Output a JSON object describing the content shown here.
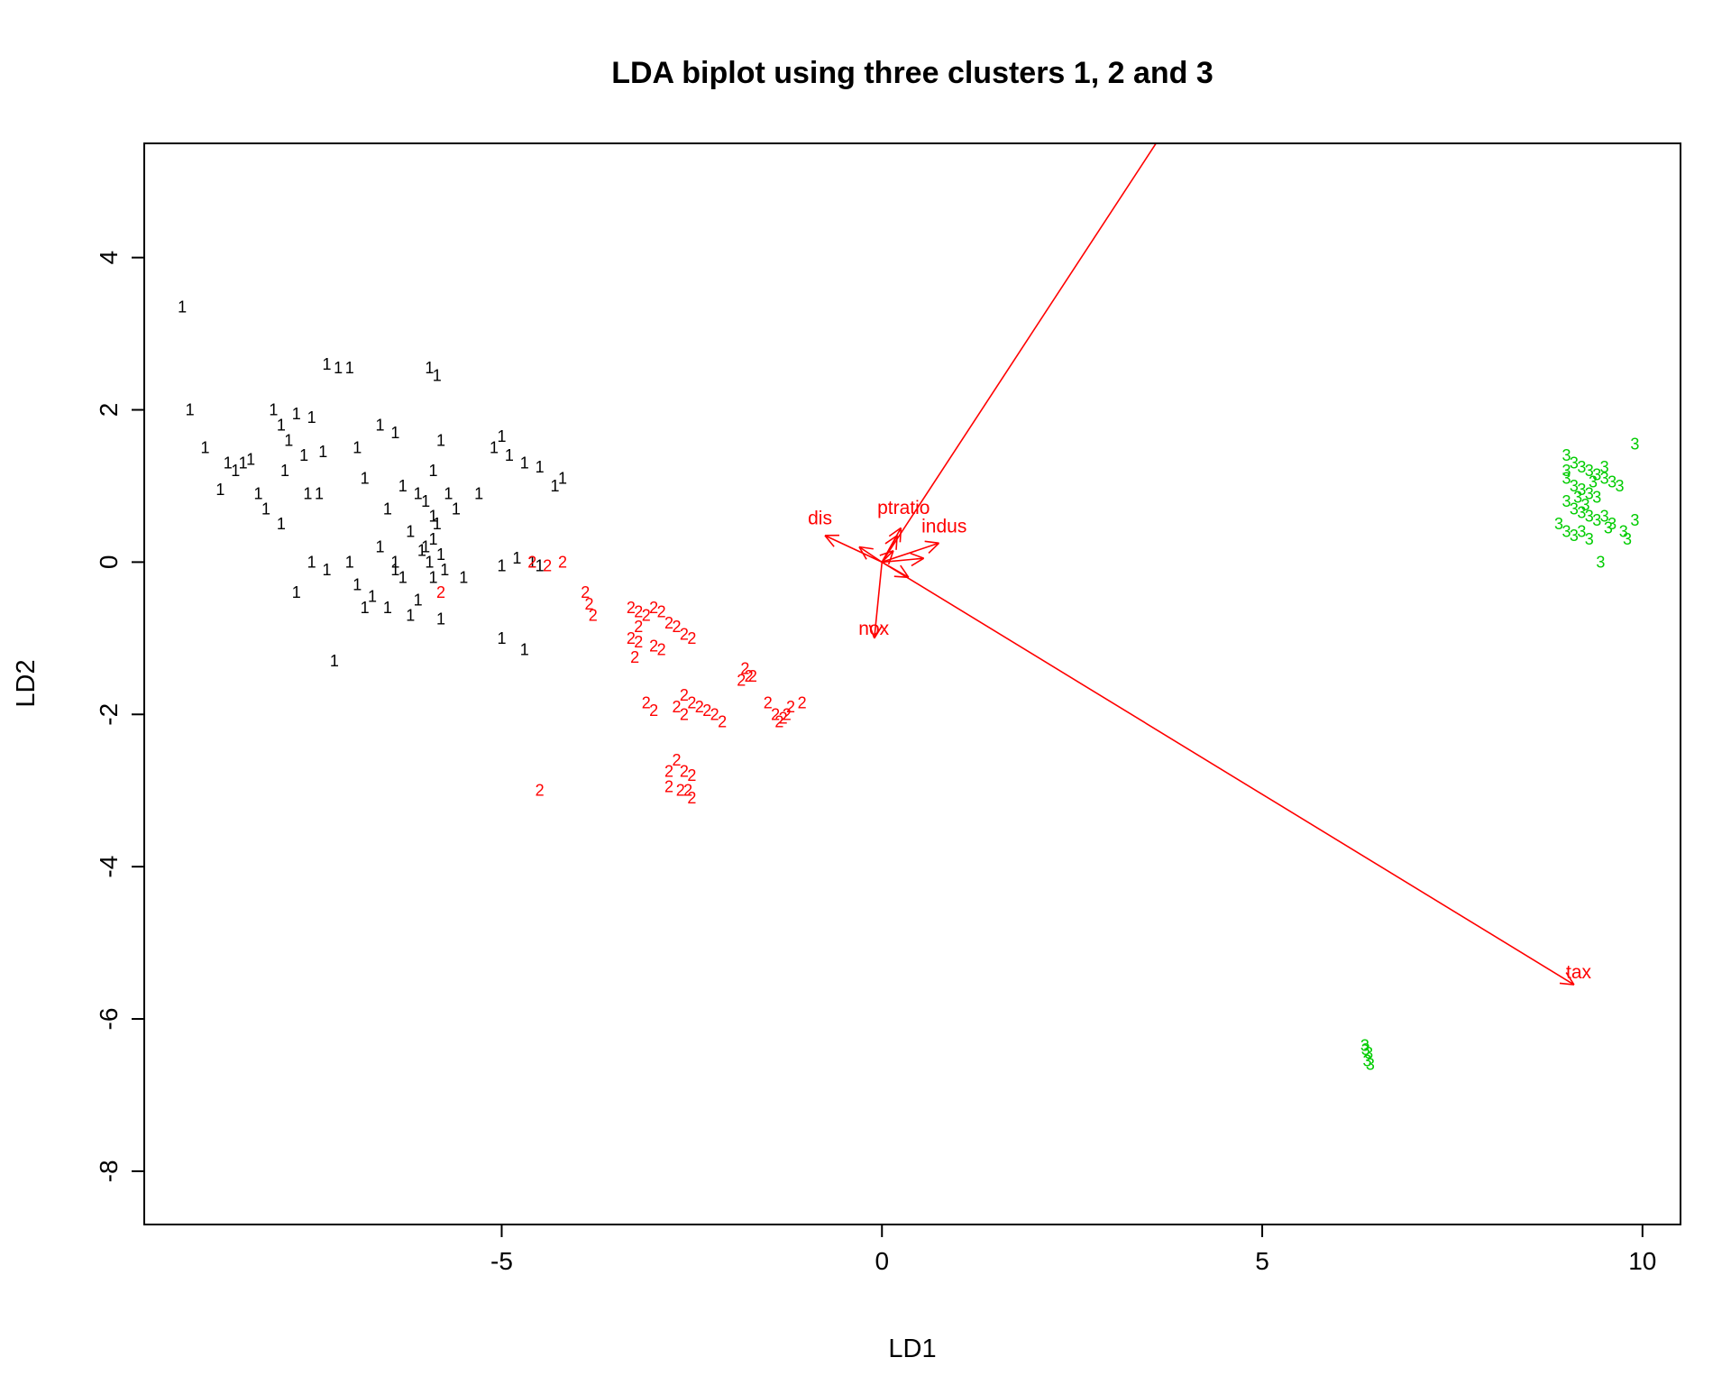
{
  "chart_data": {
    "type": "scatter",
    "title": "LDA biplot using three clusters 1, 2 and 3",
    "xlabel": "LD1",
    "ylabel": "LD2",
    "xlim": [
      -9.7,
      10.5
    ],
    "ylim": [
      -8.7,
      5.5
    ],
    "xticks": [
      -5,
      0,
      5,
      10
    ],
    "xtick_labels": [
      "-5",
      "0",
      "5",
      "10"
    ],
    "yticks": [
      -8,
      -6,
      -4,
      -2,
      0,
      2,
      4
    ],
    "ytick_labels": [
      "-8",
      "-6",
      "-4",
      "-2",
      "0",
      "2",
      "4"
    ],
    "grid": false,
    "legend": "none",
    "series": [
      {
        "name": "1",
        "color": "#000000",
        "points": [
          [
            -9.2,
            3.35
          ],
          [
            -9.1,
            2.0
          ],
          [
            -8.6,
            1.3
          ],
          [
            -8.9,
            1.5
          ],
          [
            -8.7,
            0.95
          ],
          [
            -8.4,
            1.3
          ],
          [
            -8.3,
            1.35
          ],
          [
            -8.0,
            2.0
          ],
          [
            -7.9,
            1.8
          ],
          [
            -7.8,
            1.6
          ],
          [
            -7.85,
            1.2
          ],
          [
            -7.7,
            1.95
          ],
          [
            -7.6,
            1.4
          ],
          [
            -7.55,
            0.9
          ],
          [
            -7.4,
            0.9
          ],
          [
            -8.1,
            0.7
          ],
          [
            -7.9,
            0.5
          ],
          [
            -7.5,
            1.9
          ],
          [
            -7.35,
            1.45
          ],
          [
            -7.3,
            2.6
          ],
          [
            -7.15,
            2.55
          ],
          [
            -7.5,
            0.0
          ],
          [
            -7.3,
            -0.1
          ],
          [
            -7.7,
            -0.4
          ],
          [
            -7.0,
            2.55
          ],
          [
            -6.8,
            1.1
          ],
          [
            -6.6,
            1.8
          ],
          [
            -6.4,
            1.7
          ],
          [
            -6.3,
            1.0
          ],
          [
            -6.1,
            0.9
          ],
          [
            -6.0,
            0.8
          ],
          [
            -5.9,
            0.6
          ],
          [
            -6.5,
            0.7
          ],
          [
            -6.2,
            0.4
          ],
          [
            -6.4,
            -0.1
          ],
          [
            -6.9,
            1.5
          ],
          [
            -5.95,
            2.55
          ],
          [
            -5.85,
            2.45
          ],
          [
            -5.8,
            1.6
          ],
          [
            -5.9,
            1.2
          ],
          [
            -5.7,
            0.9
          ],
          [
            -5.9,
            0.3
          ],
          [
            -5.8,
            0.1
          ],
          [
            -5.85,
            0.5
          ],
          [
            -5.75,
            -0.1
          ],
          [
            -5.9,
            -0.2
          ],
          [
            -5.6,
            0.7
          ],
          [
            -7.0,
            0.0
          ],
          [
            -6.9,
            -0.3
          ],
          [
            -6.7,
            -0.45
          ],
          [
            -6.5,
            -0.6
          ],
          [
            -6.3,
            -0.2
          ],
          [
            -6.1,
            -0.5
          ],
          [
            -6.2,
            -0.7
          ],
          [
            -5.8,
            -0.75
          ],
          [
            -5.5,
            -0.2
          ],
          [
            -5.3,
            0.9
          ],
          [
            -6.8,
            -0.6
          ],
          [
            -6.6,
            0.2
          ],
          [
            -6.4,
            0.0
          ],
          [
            -5.1,
            1.5
          ],
          [
            -4.9,
            1.4
          ],
          [
            -4.7,
            1.3
          ],
          [
            -4.5,
            1.25
          ],
          [
            -4.3,
            1.0
          ],
          [
            -4.2,
            1.1
          ],
          [
            -5.0,
            1.65
          ],
          [
            -4.8,
            0.05
          ],
          [
            -5.0,
            -0.05
          ],
          [
            -4.6,
            0.0
          ],
          [
            -4.5,
            -0.05
          ],
          [
            -5.0,
            -1.0
          ],
          [
            -4.7,
            -1.15
          ],
          [
            -7.2,
            -1.3
          ],
          [
            -8.2,
            0.9
          ],
          [
            -8.5,
            1.2
          ],
          [
            -6.0,
            0.2
          ],
          [
            -5.95,
            0.0
          ],
          [
            -6.05,
            0.15
          ]
        ]
      },
      {
        "name": "2",
        "color": "#ff0000",
        "points": [
          [
            -4.6,
            0.0
          ],
          [
            -4.4,
            -0.05
          ],
          [
            -4.2,
            0.0
          ],
          [
            -5.8,
            -0.4
          ],
          [
            -3.9,
            -0.4
          ],
          [
            -3.85,
            -0.55
          ],
          [
            -3.8,
            -0.7
          ],
          [
            -3.3,
            -0.6
          ],
          [
            -3.2,
            -0.65
          ],
          [
            -3.1,
            -0.7
          ],
          [
            -3.0,
            -0.6
          ],
          [
            -2.9,
            -0.65
          ],
          [
            -2.8,
            -0.8
          ],
          [
            -2.7,
            -0.85
          ],
          [
            -2.6,
            -0.95
          ],
          [
            -2.5,
            -1.0
          ],
          [
            -3.3,
            -1.0
          ],
          [
            -3.2,
            -1.05
          ],
          [
            -3.25,
            -1.25
          ],
          [
            -3.0,
            -1.1
          ],
          [
            -2.9,
            -1.15
          ],
          [
            -3.2,
            -0.85
          ],
          [
            -2.6,
            -1.75
          ],
          [
            -2.5,
            -1.85
          ],
          [
            -2.4,
            -1.9
          ],
          [
            -2.3,
            -1.95
          ],
          [
            -2.2,
            -2.0
          ],
          [
            -2.1,
            -2.1
          ],
          [
            -3.1,
            -1.85
          ],
          [
            -3.0,
            -1.95
          ],
          [
            -2.7,
            -1.9
          ],
          [
            -2.6,
            -2.0
          ],
          [
            -1.8,
            -1.4
          ],
          [
            -1.75,
            -1.5
          ],
          [
            -1.85,
            -1.55
          ],
          [
            -1.7,
            -1.5
          ],
          [
            -1.5,
            -1.85
          ],
          [
            -1.4,
            -2.0
          ],
          [
            -1.3,
            -2.05
          ],
          [
            -1.2,
            -1.9
          ],
          [
            -1.05,
            -1.85
          ],
          [
            -1.35,
            -2.1
          ],
          [
            -1.25,
            -2.0
          ],
          [
            -2.7,
            -2.6
          ],
          [
            -2.6,
            -2.75
          ],
          [
            -2.5,
            -2.8
          ],
          [
            -2.55,
            -3.0
          ],
          [
            -2.65,
            -3.0
          ],
          [
            -2.5,
            -3.1
          ],
          [
            -2.8,
            -2.75
          ],
          [
            -2.8,
            -2.95
          ],
          [
            -4.5,
            -3.0
          ]
        ]
      },
      {
        "name": "3",
        "color": "#00cc00",
        "points": [
          [
            9.0,
            1.4
          ],
          [
            9.1,
            1.3
          ],
          [
            9.2,
            1.25
          ],
          [
            9.3,
            1.2
          ],
          [
            9.4,
            1.15
          ],
          [
            9.5,
            1.1
          ],
          [
            9.6,
            1.05
          ],
          [
            9.7,
            1.0
          ],
          [
            9.9,
            1.55
          ],
          [
            9.0,
            1.1
          ],
          [
            9.1,
            1.0
          ],
          [
            9.2,
            0.95
          ],
          [
            9.3,
            0.9
          ],
          [
            9.4,
            0.85
          ],
          [
            9.5,
            1.25
          ],
          [
            9.0,
            0.8
          ],
          [
            9.1,
            0.7
          ],
          [
            9.2,
            0.65
          ],
          [
            9.3,
            0.6
          ],
          [
            9.4,
            0.55
          ],
          [
            9.5,
            0.6
          ],
          [
            9.6,
            0.5
          ],
          [
            8.9,
            0.5
          ],
          [
            9.0,
            0.4
          ],
          [
            9.1,
            0.35
          ],
          [
            9.2,
            0.4
          ],
          [
            9.3,
            0.3
          ],
          [
            9.55,
            0.45
          ],
          [
            9.9,
            0.55
          ],
          [
            9.75,
            0.4
          ],
          [
            9.8,
            0.3
          ],
          [
            9.45,
            0.0
          ],
          [
            9.0,
            1.2
          ],
          [
            9.15,
            0.85
          ],
          [
            9.35,
            1.05
          ],
          [
            9.25,
            0.75
          ],
          [
            6.35,
            -6.35
          ],
          [
            6.4,
            -6.45
          ],
          [
            6.38,
            -6.55
          ],
          [
            6.42,
            -6.6
          ],
          [
            6.36,
            -6.4
          ]
        ]
      }
    ],
    "arrows": [
      {
        "label": "",
        "x": 3.8,
        "y": 5.8
      },
      {
        "label": "tax",
        "x": 9.1,
        "y": -5.55
      },
      {
        "label": "nox",
        "x": -0.1,
        "y": -1.0
      },
      {
        "label": "dis",
        "x": -0.75,
        "y": 0.35
      },
      {
        "label": "ptratio",
        "x": 0.25,
        "y": 0.45
      },
      {
        "label": "indus",
        "x": 0.75,
        "y": 0.25
      },
      {
        "label": "",
        "x": 0.55,
        "y": 0.05
      },
      {
        "label": "",
        "x": 0.35,
        "y": -0.2
      },
      {
        "label": "",
        "x": 0.2,
        "y": 0.35
      },
      {
        "label": "",
        "x": -0.3,
        "y": 0.2
      },
      {
        "label": "",
        "x": 0.15,
        "y": 0.15
      }
    ]
  }
}
